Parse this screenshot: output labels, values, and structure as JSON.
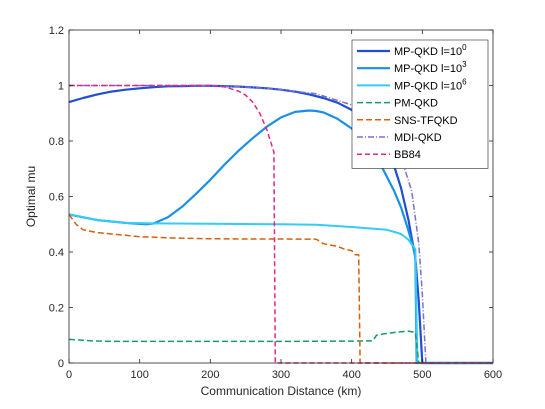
{
  "chart_data": {
    "type": "line",
    "title": "",
    "xlabel": "Communication Distance (km)",
    "ylabel": "Optimal mu",
    "xlim": [
      0,
      600
    ],
    "ylim": [
      0,
      1.2
    ],
    "xticks": [
      0,
      100,
      200,
      300,
      400,
      500,
      600
    ],
    "yticks": [
      0,
      0.2,
      0.4,
      0.6,
      0.8,
      1,
      1.2
    ],
    "grid": false,
    "legend_position": "top-right",
    "series": [
      {
        "name": "MP-QKD l=10^0",
        "legend": {
          "base": "MP-QKD l=10",
          "exp": "0"
        },
        "color": "#1f4fd1",
        "dash": "solid",
        "width": 2.2,
        "x": [
          0,
          20,
          40,
          60,
          80,
          100,
          120,
          140,
          160,
          180,
          200,
          220,
          240,
          260,
          280,
          300,
          320,
          340,
          360,
          380,
          400,
          420,
          440,
          460,
          470,
          480,
          490,
          495,
          500,
          600
        ],
        "y": [
          0.94,
          0.955,
          0.968,
          0.978,
          0.985,
          0.99,
          0.994,
          0.997,
          0.998,
          0.999,
          0.999,
          0.998,
          0.996,
          0.993,
          0.99,
          0.985,
          0.978,
          0.968,
          0.955,
          0.938,
          0.912,
          0.872,
          0.81,
          0.71,
          0.63,
          0.52,
          0.38,
          0.22,
          0,
          0
        ]
      },
      {
        "name": "MP-QKD l=10^3",
        "legend": {
          "base": "MP-QKD l=10",
          "exp": "3"
        },
        "color": "#1a8fe8",
        "dash": "solid",
        "width": 2.2,
        "x": [
          0,
          40,
          80,
          110,
          120,
          140,
          160,
          180,
          200,
          220,
          240,
          260,
          280,
          300,
          320,
          340,
          350,
          360,
          380,
          400,
          420,
          440,
          460,
          470,
          480,
          490,
          492,
          600
        ],
        "y": [
          0.535,
          0.515,
          0.505,
          0.5,
          0.503,
          0.525,
          0.563,
          0.61,
          0.66,
          0.715,
          0.765,
          0.81,
          0.852,
          0.885,
          0.905,
          0.91,
          0.908,
          0.903,
          0.88,
          0.845,
          0.79,
          0.72,
          0.62,
          0.56,
          0.48,
          0.39,
          0,
          0
        ]
      },
      {
        "name": "MP-QKD l=10^6",
        "legend": {
          "base": "MP-QKD l=10",
          "exp": "6"
        },
        "color": "#33ccf5",
        "dash": "solid",
        "width": 2.0,
        "x": [
          0,
          40,
          80,
          120,
          200,
          300,
          350,
          400,
          450,
          470,
          480,
          490,
          493,
          600
        ],
        "y": [
          0.535,
          0.515,
          0.505,
          0.503,
          0.502,
          0.5,
          0.498,
          0.49,
          0.48,
          0.465,
          0.445,
          0.41,
          0,
          0
        ]
      },
      {
        "name": "PM-QKD",
        "legend": {
          "base": "PM-QKD",
          "exp": ""
        },
        "color": "#169a6e",
        "dash": "6,3",
        "width": 1.5,
        "x": [
          0,
          15,
          30,
          60,
          100,
          200,
          300,
          400,
          430,
          435,
          445,
          460,
          480,
          490,
          495,
          600
        ],
        "y": [
          0.085,
          0.083,
          0.08,
          0.078,
          0.078,
          0.078,
          0.078,
          0.079,
          0.08,
          0.1,
          0.105,
          0.11,
          0.115,
          0.11,
          0,
          0
        ]
      },
      {
        "name": "SNS-TFQKD",
        "legend": {
          "base": "SNS-TFQKD",
          "exp": ""
        },
        "color": "#d95f0e",
        "dash": "6,3",
        "width": 1.5,
        "x": [
          0,
          10,
          20,
          40,
          60,
          80,
          100,
          150,
          200,
          250,
          300,
          350,
          360,
          380,
          390,
          400,
          405,
          410,
          412,
          600
        ],
        "y": [
          0.535,
          0.5,
          0.48,
          0.47,
          0.465,
          0.46,
          0.455,
          0.45,
          0.448,
          0.447,
          0.447,
          0.446,
          0.43,
          0.42,
          0.41,
          0.405,
          0.39,
          0.39,
          0,
          0
        ]
      },
      {
        "name": "MDI-QKD",
        "legend": {
          "base": "MDI-QKD",
          "exp": ""
        },
        "color": "#7b6fd6",
        "dash": "6,2,1,2",
        "width": 1.5,
        "x": [
          0,
          50,
          100,
          150,
          200,
          250,
          300,
          350,
          400,
          430,
          450,
          470,
          485,
          495,
          500,
          505,
          600
        ],
        "y": [
          1.0,
          1.0,
          1.0,
          1.0,
          0.999,
          0.995,
          0.985,
          0.97,
          0.93,
          0.885,
          0.835,
          0.74,
          0.62,
          0.43,
          0.25,
          0,
          0
        ]
      },
      {
        "name": "BB84",
        "legend": {
          "base": "BB84",
          "exp": ""
        },
        "color": "#e0288a",
        "dash": "5,3",
        "width": 1.5,
        "x": [
          0,
          50,
          100,
          150,
          200,
          220,
          240,
          250,
          260,
          270,
          280,
          285,
          290,
          292,
          600
        ],
        "y": [
          1.0,
          1.0,
          1.0,
          1.0,
          1.0,
          0.995,
          0.98,
          0.965,
          0.94,
          0.9,
          0.84,
          0.8,
          0.76,
          0,
          0
        ]
      }
    ]
  }
}
